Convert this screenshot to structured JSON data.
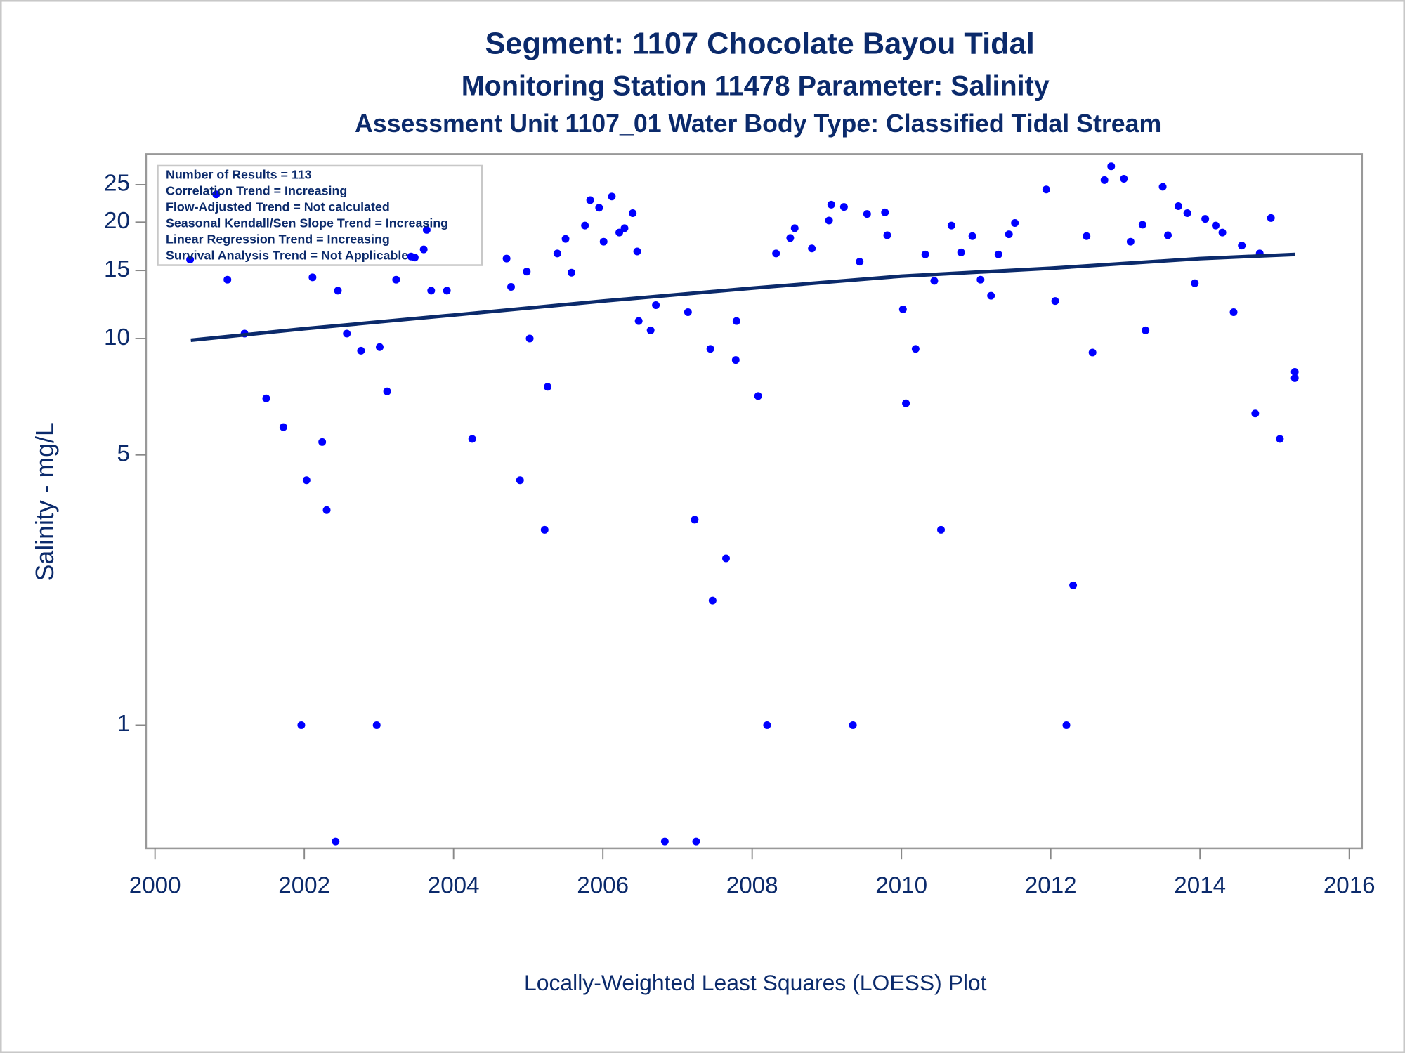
{
  "chart_data": {
    "type": "scatter",
    "title": "Segment: 1107  Chocolate Bayou Tidal",
    "subtitles": [
      "Monitoring Station 11478 Parameter: Salinity",
      "Assessment Unit 1107_01   Water Body Type: Classified Tidal Stream"
    ],
    "ylabel": "Salinity - mg/L",
    "footnote": "Locally-Weighted Least Squares (LOESS) Plot",
    "annotations": [
      "Number of Results = 113",
      "Correlation Trend = Increasing",
      "Flow-Adjusted Trend = Not calculated",
      "Seasonal Kendall/Sen Slope Trend = Increasing",
      "Linear Regression Trend = Increasing",
      "Survival Analysis Trend = Not Applicable"
    ],
    "ylog": true,
    "xlim": [
      1999.88,
      2016.17
    ],
    "xticks": [
      2000,
      2002,
      2004,
      2006,
      2008,
      2010,
      2012,
      2014,
      2016
    ],
    "ylim": [
      0.48,
      30
    ],
    "yticks": [
      1,
      5,
      10,
      15,
      20,
      25
    ],
    "series": [
      {
        "type": "scatter",
        "color": "#0000ff",
        "x": [
          2000.47,
          2000.82,
          2000.97,
          2001.2,
          2001.49,
          2001.72,
          2001.96,
          2002.03,
          2002.11,
          2002.24,
          2002.3,
          2002.42,
          2002.45,
          2002.57,
          2002.76,
          2002.97,
          2003.01,
          2003.11,
          2003.23,
          2003.43,
          2003.48,
          2003.6,
          2003.64,
          2003.7,
          2003.91,
          2004.25,
          2004.71,
          2004.77,
          2004.89,
          2004.98,
          2005.02,
          2005.22,
          2005.26,
          2005.39,
          2005.5,
          2005.58,
          2005.76,
          2005.83,
          2005.95,
          2006.01,
          2006.12,
          2006.22,
          2006.29,
          2006.4,
          2006.46,
          2006.48,
          2006.64,
          2006.71,
          2006.83,
          2007.14,
          2007.23,
          2007.25,
          2007.44,
          2007.47,
          2007.65,
          2007.78,
          2007.79,
          2008.08,
          2008.2,
          2008.32,
          2008.51,
          2008.57,
          2008.8,
          2009.03,
          2009.06,
          2009.23,
          2009.35,
          2009.44,
          2009.54,
          2009.78,
          2009.81,
          2010.02,
          2010.06,
          2010.19,
          2010.32,
          2010.44,
          2010.53,
          2010.67,
          2010.8,
          2010.95,
          2011.06,
          2011.2,
          2011.3,
          2011.44,
          2011.52,
          2011.94,
          2012.06,
          2012.21,
          2012.3,
          2012.48,
          2012.56,
          2012.72,
          2012.81,
          2012.98,
          2013.07,
          2013.23,
          2013.27,
          2013.5,
          2013.57,
          2013.71,
          2013.83,
          2013.93,
          2014.07,
          2014.21,
          2014.3,
          2014.45,
          2014.56,
          2014.74,
          2014.8,
          2014.95,
          2015.07,
          2015.27,
          2015.27
        ],
        "values": [
          16.0,
          23.6,
          14.2,
          10.3,
          7.0,
          5.9,
          1.0,
          4.3,
          14.4,
          5.4,
          3.6,
          0.5,
          13.3,
          10.3,
          9.3,
          1.0,
          9.5,
          7.3,
          14.2,
          16.3,
          16.2,
          17.0,
          19.1,
          13.3,
          13.3,
          5.5,
          16.1,
          13.6,
          4.3,
          14.9,
          10.0,
          3.2,
          7.5,
          16.6,
          18.1,
          14.8,
          19.6,
          22.8,
          21.8,
          17.8,
          23.3,
          18.8,
          19.3,
          21.1,
          16.8,
          11.1,
          10.5,
          12.2,
          0.5,
          11.7,
          3.4,
          0.5,
          9.4,
          2.1,
          2.7,
          8.8,
          11.1,
          7.1,
          1.0,
          16.6,
          18.2,
          19.3,
          17.1,
          20.2,
          22.2,
          21.9,
          1.0,
          15.8,
          21.0,
          21.2,
          18.5,
          11.9,
          6.8,
          9.4,
          16.5,
          14.1,
          3.2,
          19.6,
          16.7,
          18.4,
          14.2,
          12.9,
          16.5,
          18.6,
          19.9,
          24.3,
          12.5,
          1.0,
          2.3,
          18.4,
          9.2,
          25.7,
          27.9,
          25.9,
          17.8,
          19.7,
          10.5,
          24.7,
          18.5,
          22.0,
          21.1,
          13.9,
          20.4,
          19.6,
          18.8,
          11.7,
          17.4,
          6.4,
          16.6,
          20.5,
          5.5,
          8.2,
          7.9
        ]
      },
      {
        "type": "line",
        "color": "#0b2a6b",
        "x": [
          2000.48,
          2002,
          2004,
          2006,
          2008,
          2010,
          2012,
          2014,
          2015.27
        ],
        "values": [
          9.9,
          10.6,
          11.5,
          12.5,
          13.5,
          14.5,
          15.2,
          16.1,
          16.5
        ]
      }
    ]
  }
}
